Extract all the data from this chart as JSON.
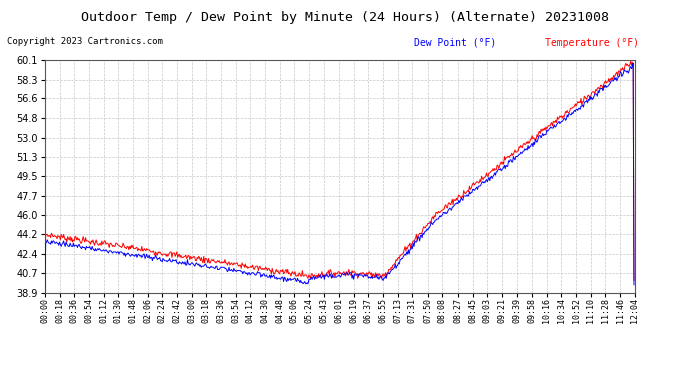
{
  "title": "Outdoor Temp / Dew Point by Minute (24 Hours) (Alternate) 20231008",
  "copyright": "Copyright 2023 Cartronics.com",
  "legend_dew": "Dew Point (°F)",
  "legend_temp": "Temperature (°F)",
  "dew_color": "blue",
  "temp_color": "red",
  "ylim": [
    38.9,
    60.1
  ],
  "yticks": [
    38.9,
    40.7,
    42.4,
    44.2,
    46.0,
    47.7,
    49.5,
    51.3,
    53.0,
    54.8,
    56.6,
    58.3,
    60.1
  ],
  "bg_color": "#ffffff",
  "grid_color": "#c8c8c8",
  "xtick_labels": [
    "00:00",
    "00:18",
    "00:36",
    "00:54",
    "01:12",
    "01:30",
    "01:48",
    "02:06",
    "02:24",
    "02:42",
    "03:00",
    "03:18",
    "03:36",
    "03:54",
    "04:12",
    "04:30",
    "04:48",
    "05:06",
    "05:24",
    "05:43",
    "06:01",
    "06:19",
    "06:37",
    "06:55",
    "07:13",
    "07:31",
    "07:50",
    "08:08",
    "08:27",
    "08:45",
    "09:03",
    "09:21",
    "09:39",
    "09:58",
    "10:16",
    "10:34",
    "10:52",
    "11:10",
    "11:28",
    "11:46",
    "12:04"
  ]
}
